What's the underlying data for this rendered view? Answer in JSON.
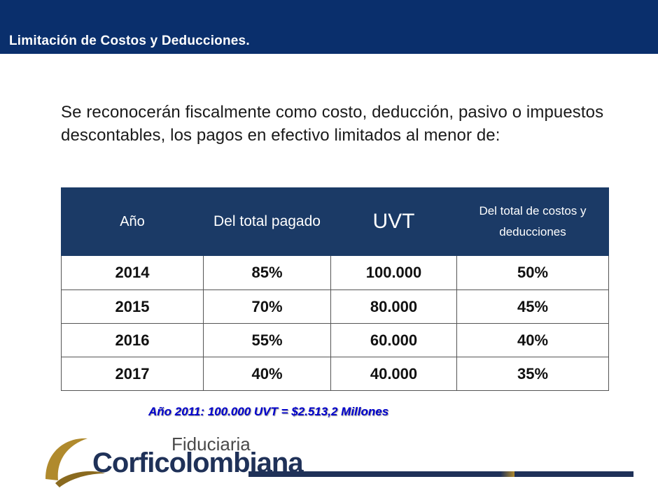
{
  "header": {
    "title": "Limitación de Costos y Deducciones."
  },
  "intro": "Se reconocerán fiscalmente como costo, deducción, pasivo o impuestos descontables, los pagos en efectivo limitados al menor de:",
  "table": {
    "headers": [
      "Año",
      "Del total pagado",
      "UVT",
      "Del total de costos y deducciones"
    ],
    "rows": [
      [
        "2014",
        "85%",
        "100.000",
        "50%"
      ],
      [
        "2015",
        "70%",
        "80.000",
        "45%"
      ],
      [
        "2016",
        "55%",
        "60.000",
        "40%"
      ],
      [
        "2017",
        "40%",
        "40.000",
        "35%"
      ]
    ]
  },
  "note": "Año 2011: 100.000 UVT = $2.513,2 Millones",
  "logo": {
    "line1": "Fiduciaria",
    "line2": "Corficolombiana"
  },
  "colors": {
    "header": "#0a2f6c",
    "table_header": "#1b3a66",
    "note": "#0000cc",
    "logo_gold": "#b08a2d",
    "logo_navy": "#1f3158"
  }
}
